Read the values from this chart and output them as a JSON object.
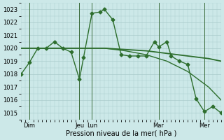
{
  "title": "",
  "xlabel": "Pression niveau de la mer( hPa )",
  "ylabel": "",
  "background_color": "#cce8e8",
  "grid_color": "#aacccc",
  "line_color": "#2d6e2d",
  "ylim": [
    1014.5,
    1023.5
  ],
  "xlim": [
    0,
    96
  ],
  "yticks": [
    1015,
    1016,
    1017,
    1018,
    1019,
    1020,
    1021,
    1022,
    1023
  ],
  "xtick_positions": [
    4,
    28,
    34,
    66,
    88
  ],
  "xtick_labels": [
    "Dim",
    "Jeu",
    "Lun",
    "Mar",
    "Mer"
  ],
  "vlines": [
    4,
    28,
    34,
    66,
    88
  ],
  "series1_x": [
    0,
    4,
    8,
    12,
    16,
    20,
    24,
    28,
    30,
    34,
    38,
    40,
    44,
    48,
    52,
    56,
    60,
    64,
    66,
    70,
    72,
    76,
    80,
    84,
    88,
    92,
    96
  ],
  "series1_y": [
    1018.0,
    1018.9,
    1020.0,
    1020.0,
    1020.5,
    1020.0,
    1019.7,
    1017.6,
    1019.3,
    1022.7,
    1022.8,
    1023.0,
    1022.2,
    1019.5,
    1019.4,
    1019.4,
    1019.4,
    1020.5,
    1020.1,
    1020.5,
    1019.4,
    1019.0,
    1018.75,
    1016.1,
    1015.1,
    1015.5,
    1015.0
  ],
  "series2_x": [
    0,
    10,
    20,
    30,
    40,
    50,
    60,
    70,
    80,
    90,
    96
  ],
  "series2_y": [
    1020.0,
    1020.0,
    1020.0,
    1020.0,
    1020.0,
    1019.9,
    1019.8,
    1019.6,
    1019.4,
    1019.2,
    1019.0
  ],
  "series3_x": [
    0,
    10,
    20,
    30,
    40,
    50,
    60,
    70,
    80,
    90,
    96
  ],
  "series3_y": [
    1020.0,
    1020.0,
    1020.0,
    1020.0,
    1020.0,
    1019.8,
    1019.5,
    1019.0,
    1018.2,
    1017.0,
    1016.0
  ]
}
